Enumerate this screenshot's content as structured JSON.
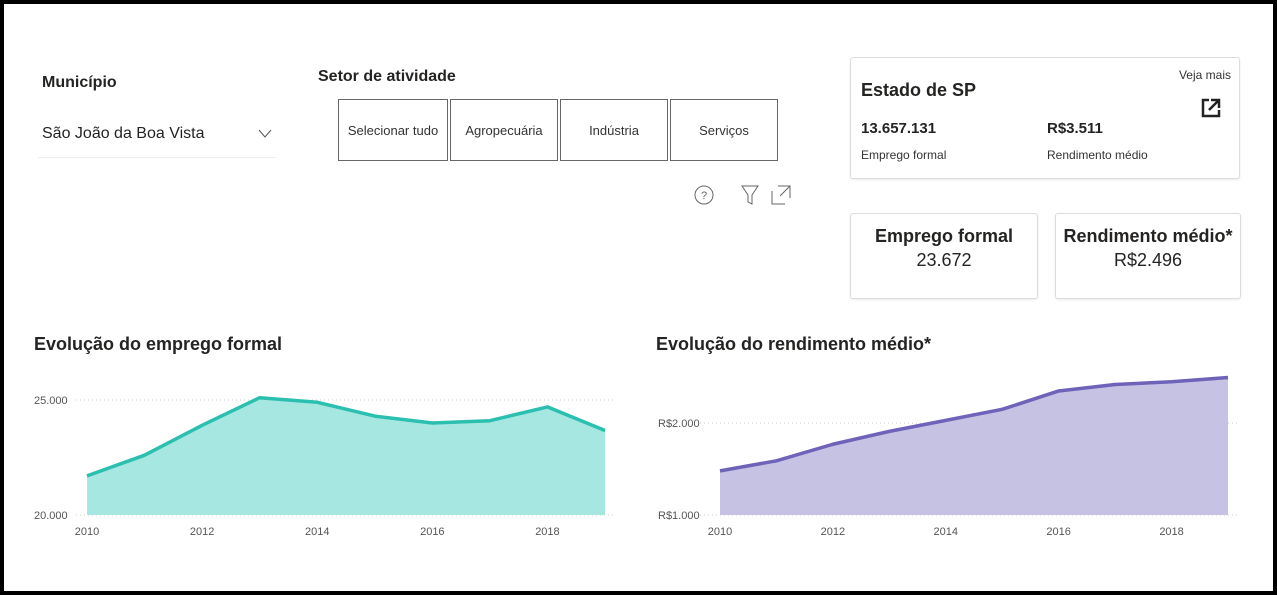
{
  "filters": {
    "municipio": {
      "label": "Município",
      "value": "São João da Boa Vista"
    },
    "setor": {
      "label": "Setor de atividade",
      "options": [
        "Selecionar tudo",
        "Agropecuária",
        "Indústria",
        "Serviços"
      ]
    }
  },
  "estado": {
    "title": "Estado de SP",
    "link": "Veja mais",
    "emprego_value": "13.657.131",
    "emprego_label": "Emprego formal",
    "rendimento_value": "R$3.511",
    "rendimento_label": "Rendimento médio"
  },
  "kpis": [
    {
      "label": "Emprego formal",
      "value": "23.672"
    },
    {
      "label": "Rendimento médio*",
      "value": "R$2.496"
    }
  ],
  "chart_data": [
    {
      "type": "area",
      "title": "Evolução do emprego formal",
      "x": [
        2010,
        2011,
        2012,
        2013,
        2014,
        2015,
        2016,
        2017,
        2018,
        2019
      ],
      "series": [
        {
          "color": "#2bbfb0",
          "fill": "#a6e7e1",
          "values": [
            21700,
            22600,
            23900,
            25100,
            24900,
            24300,
            24000,
            24100,
            24700,
            23672
          ]
        }
      ],
      "xlim": [
        2010,
        2019
      ],
      "xticks": [
        2010,
        2012,
        2014,
        2016,
        2018
      ],
      "ylim": [
        20000,
        26000
      ],
      "yticks": [
        {
          "value": 20000,
          "label": "20.000"
        },
        {
          "value": 25000,
          "label": "25.000"
        }
      ],
      "grid": true
    },
    {
      "type": "area",
      "title": "Evolução do rendimento médio*",
      "x": [
        2010,
        2011,
        2012,
        2013,
        2014,
        2015,
        2016,
        2017,
        2018,
        2019
      ],
      "series": [
        {
          "color": "#6e63b8",
          "fill": "#c5c2e4",
          "values": [
            1480,
            1590,
            1770,
            1910,
            2030,
            2150,
            2350,
            2420,
            2450,
            2496
          ]
        }
      ],
      "xlim": [
        2010,
        2019
      ],
      "xticks": [
        2010,
        2012,
        2014,
        2016,
        2018
      ],
      "ylim": [
        1000,
        2600
      ],
      "yticks": [
        {
          "value": 1000,
          "label": "R$1.000"
        },
        {
          "value": 2000,
          "label": "R$2.000"
        }
      ],
      "grid": true
    }
  ]
}
